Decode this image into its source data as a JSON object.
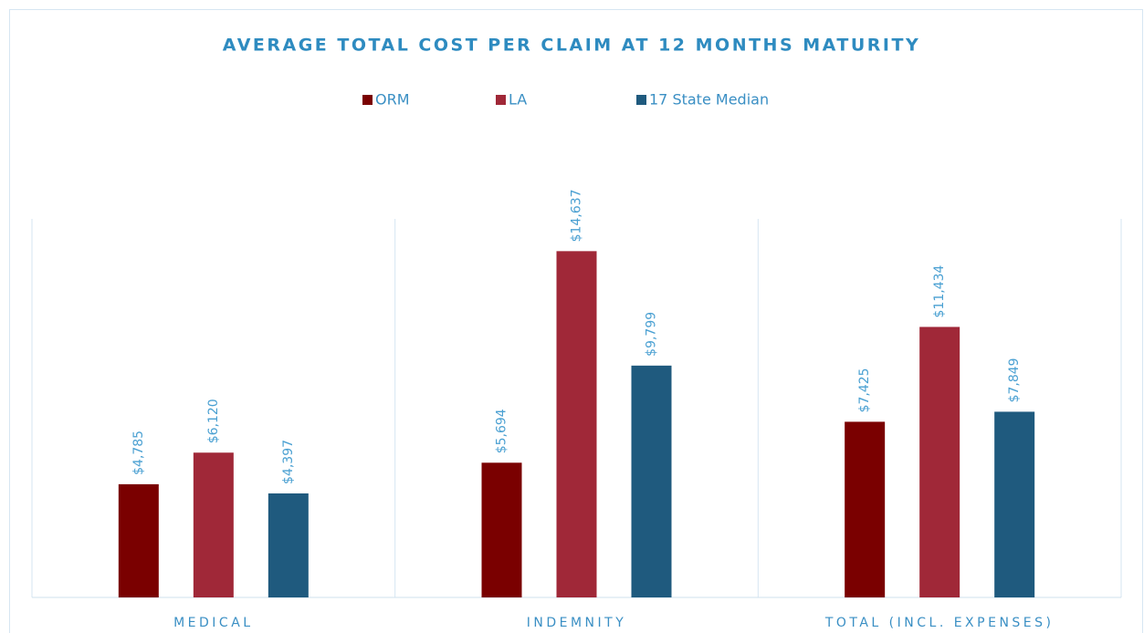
{
  "chart_data": {
    "type": "bar",
    "title": "AVERAGE TOTAL COST PER CLAIM AT 12 MONTHS MATURITY",
    "categories": [
      "MEDICAL",
      "INDEMNITY",
      "TOTAL (INCL. EXPENSES)"
    ],
    "series": [
      {
        "name": "ORM",
        "color": "#7a0000",
        "values": [
          4785,
          5694,
          7425
        ],
        "value_labels": [
          "$4,785",
          "$5,694",
          "$7,425"
        ]
      },
      {
        "name": "LA",
        "color": "#a02838",
        "values": [
          6120,
          14637,
          11434
        ],
        "value_labels": [
          "$6,120",
          "$14,637",
          "$11,434"
        ]
      },
      {
        "name": "17 State Median",
        "color": "#1f5a7e",
        "values": [
          4397,
          9799,
          7849
        ],
        "value_labels": [
          "$4,397",
          "$9,799",
          "$7,849"
        ]
      }
    ],
    "ylim": [
      0,
      16000
    ],
    "legend": "top"
  }
}
